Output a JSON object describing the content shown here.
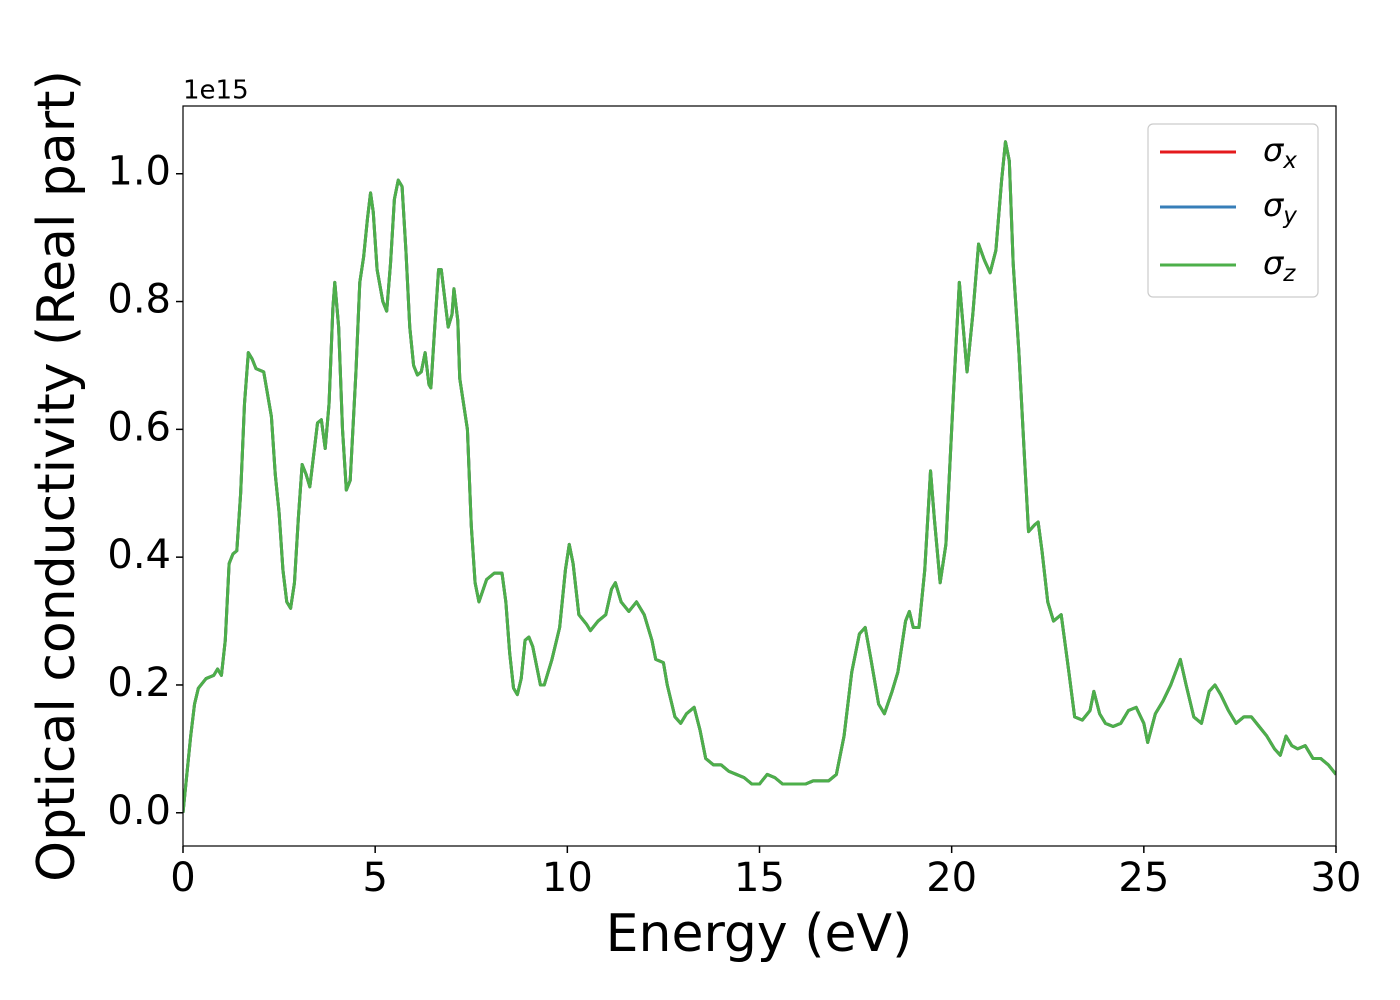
{
  "chart_data": {
    "type": "line",
    "xlabel": "Energy (eV)",
    "ylabel": "Optical conductivity (Real part)",
    "offset_text": "1e15",
    "xlim": [
      0,
      30
    ],
    "xticks": [
      0,
      5,
      10,
      15,
      20,
      25,
      30
    ],
    "ylim": [
      -0.052,
      1.106
    ],
    "yticks": [
      {
        "value": 0,
        "label": "0.0"
      },
      0.2,
      0.4,
      0.6,
      0.8,
      {
        "value": 1,
        "label": "1.0"
      }
    ],
    "legend": "upper right",
    "x": [
      0,
      0.1,
      0.2,
      0.3,
      0.4,
      0.6,
      0.8,
      0.9,
      1.0,
      1.1,
      1.2,
      1.3,
      1.4,
      1.5,
      1.6,
      1.7,
      1.8,
      1.9,
      2.1,
      2.3,
      2.4,
      2.5,
      2.6,
      2.7,
      2.8,
      2.9,
      3.0,
      3.1,
      3.2,
      3.3,
      3.4,
      3.5,
      3.6,
      3.7,
      3.8,
      3.9,
      3.95,
      4.05,
      4.15,
      4.25,
      4.35,
      4.5,
      4.6,
      4.7,
      4.8,
      4.88,
      4.95,
      5.05,
      5.2,
      5.3,
      5.4,
      5.5,
      5.6,
      5.7,
      5.8,
      5.9,
      6.0,
      6.1,
      6.2,
      6.3,
      6.4,
      6.45,
      6.55,
      6.65,
      6.72,
      6.8,
      6.9,
      7.0,
      7.05,
      7.15,
      7.2,
      7.4,
      7.5,
      7.6,
      7.7,
      7.9,
      8.1,
      8.3,
      8.4,
      8.5,
      8.6,
      8.7,
      8.8,
      8.9,
      9.0,
      9.1,
      9.2,
      9.3,
      9.4,
      9.6,
      9.8,
      9.95,
      10.05,
      10.15,
      10.3,
      10.5,
      10.6,
      10.8,
      11.0,
      11.15,
      11.25,
      11.4,
      11.6,
      11.8,
      12.0,
      12.2,
      12.3,
      12.5,
      12.6,
      12.8,
      12.95,
      13.1,
      13.3,
      13.45,
      13.6,
      13.8,
      14.0,
      14.2,
      14.4,
      14.6,
      14.8,
      15.0,
      15.2,
      15.4,
      15.6,
      15.8,
      16.0,
      16.2,
      16.4,
      16.6,
      16.8,
      17.0,
      17.2,
      17.4,
      17.6,
      17.75,
      17.9,
      18.1,
      18.25,
      18.45,
      18.6,
      18.8,
      18.9,
      19.0,
      19.15,
      19.3,
      19.45,
      19.55,
      19.7,
      19.85,
      20.05,
      20.2,
      20.3,
      20.4,
      20.55,
      20.7,
      20.85,
      21.0,
      21.15,
      21.3,
      21.4,
      21.5,
      21.6,
      21.75,
      21.9,
      22.0,
      22.15,
      22.25,
      22.35,
      22.5,
      22.65,
      22.85,
      23.05,
      23.2,
      23.4,
      23.6,
      23.7,
      23.85,
      24.0,
      24.2,
      24.4,
      24.6,
      24.8,
      25.0,
      25.1,
      25.3,
      25.5,
      25.7,
      25.95,
      26.1,
      26.3,
      26.5,
      26.7,
      26.85,
      27.0,
      27.2,
      27.4,
      27.6,
      27.8,
      28.0,
      28.2,
      28.4,
      28.55,
      28.7,
      28.85,
      29.0,
      29.2,
      29.4,
      29.6,
      29.8,
      30.0
    ],
    "series": [
      {
        "name": "σx",
        "color": "#e41a1c",
        "values": [
          0,
          0.06,
          0.12,
          0.17,
          0.195,
          0.21,
          0.215,
          0.225,
          0.215,
          0.27,
          0.39,
          0.405,
          0.41,
          0.5,
          0.64,
          0.72,
          0.71,
          0.695,
          0.69,
          0.62,
          0.53,
          0.47,
          0.38,
          0.33,
          0.32,
          0.36,
          0.46,
          0.545,
          0.53,
          0.51,
          0.56,
          0.61,
          0.615,
          0.57,
          0.64,
          0.79,
          0.83,
          0.76,
          0.6,
          0.505,
          0.52,
          0.69,
          0.83,
          0.87,
          0.93,
          0.97,
          0.94,
          0.85,
          0.8,
          0.785,
          0.86,
          0.96,
          0.99,
          0.98,
          0.88,
          0.76,
          0.7,
          0.685,
          0.69,
          0.72,
          0.67,
          0.665,
          0.76,
          0.85,
          0.85,
          0.81,
          0.76,
          0.78,
          0.82,
          0.77,
          0.68,
          0.6,
          0.45,
          0.36,
          0.33,
          0.365,
          0.375,
          0.375,
          0.33,
          0.25,
          0.195,
          0.185,
          0.21,
          0.27,
          0.275,
          0.26,
          0.23,
          0.2,
          0.2,
          0.24,
          0.29,
          0.38,
          0.42,
          0.39,
          0.31,
          0.295,
          0.285,
          0.3,
          0.31,
          0.35,
          0.36,
          0.33,
          0.315,
          0.33,
          0.31,
          0.27,
          0.24,
          0.235,
          0.2,
          0.15,
          0.14,
          0.155,
          0.165,
          0.13,
          0.085,
          0.075,
          0.075,
          0.065,
          0.06,
          0.055,
          0.045,
          0.045,
          0.06,
          0.055,
          0.045,
          0.045,
          0.045,
          0.045,
          0.05,
          0.05,
          0.05,
          0.06,
          0.12,
          0.22,
          0.28,
          0.29,
          0.24,
          0.17,
          0.155,
          0.19,
          0.22,
          0.3,
          0.315,
          0.29,
          0.29,
          0.38,
          0.535,
          0.46,
          0.36,
          0.42,
          0.66,
          0.83,
          0.76,
          0.69,
          0.78,
          0.89,
          0.865,
          0.845,
          0.88,
          0.99,
          1.05,
          1.02,
          0.86,
          0.72,
          0.55,
          0.44,
          0.45,
          0.455,
          0.41,
          0.33,
          0.3,
          0.31,
          0.22,
          0.15,
          0.145,
          0.16,
          0.19,
          0.155,
          0.14,
          0.135,
          0.14,
          0.16,
          0.165,
          0.14,
          0.11,
          0.155,
          0.175,
          0.2,
          0.24,
          0.2,
          0.15,
          0.14,
          0.19,
          0.2,
          0.185,
          0.16,
          0.14,
          0.15,
          0.15,
          0.135,
          0.12,
          0.1,
          0.09,
          0.12,
          0.105,
          0.1,
          0.105,
          0.085,
          0.085,
          0.075,
          0.06
        ]
      },
      {
        "name": "σy",
        "color": "#377eb8",
        "values": [
          0,
          0.06,
          0.12,
          0.17,
          0.195,
          0.21,
          0.215,
          0.225,
          0.215,
          0.27,
          0.39,
          0.405,
          0.41,
          0.5,
          0.64,
          0.72,
          0.71,
          0.695,
          0.69,
          0.62,
          0.53,
          0.47,
          0.38,
          0.33,
          0.32,
          0.36,
          0.46,
          0.545,
          0.53,
          0.51,
          0.56,
          0.61,
          0.615,
          0.57,
          0.64,
          0.79,
          0.83,
          0.76,
          0.6,
          0.505,
          0.52,
          0.69,
          0.83,
          0.87,
          0.93,
          0.97,
          0.94,
          0.85,
          0.8,
          0.785,
          0.86,
          0.96,
          0.99,
          0.98,
          0.88,
          0.76,
          0.7,
          0.685,
          0.69,
          0.72,
          0.67,
          0.665,
          0.76,
          0.85,
          0.85,
          0.81,
          0.76,
          0.78,
          0.82,
          0.77,
          0.68,
          0.6,
          0.45,
          0.36,
          0.33,
          0.365,
          0.375,
          0.375,
          0.33,
          0.25,
          0.195,
          0.185,
          0.21,
          0.27,
          0.275,
          0.26,
          0.23,
          0.2,
          0.2,
          0.24,
          0.29,
          0.38,
          0.42,
          0.39,
          0.31,
          0.295,
          0.285,
          0.3,
          0.31,
          0.35,
          0.36,
          0.33,
          0.315,
          0.33,
          0.31,
          0.27,
          0.24,
          0.235,
          0.2,
          0.15,
          0.14,
          0.155,
          0.165,
          0.13,
          0.085,
          0.075,
          0.075,
          0.065,
          0.06,
          0.055,
          0.045,
          0.045,
          0.06,
          0.055,
          0.045,
          0.045,
          0.045,
          0.045,
          0.05,
          0.05,
          0.05,
          0.06,
          0.12,
          0.22,
          0.28,
          0.29,
          0.24,
          0.17,
          0.155,
          0.19,
          0.22,
          0.3,
          0.315,
          0.29,
          0.29,
          0.38,
          0.535,
          0.46,
          0.36,
          0.42,
          0.66,
          0.83,
          0.76,
          0.69,
          0.78,
          0.89,
          0.865,
          0.845,
          0.88,
          0.99,
          1.05,
          1.02,
          0.86,
          0.72,
          0.55,
          0.44,
          0.45,
          0.455,
          0.41,
          0.33,
          0.3,
          0.31,
          0.22,
          0.15,
          0.145,
          0.16,
          0.19,
          0.155,
          0.14,
          0.135,
          0.14,
          0.16,
          0.165,
          0.14,
          0.11,
          0.155,
          0.175,
          0.2,
          0.24,
          0.2,
          0.15,
          0.14,
          0.19,
          0.2,
          0.185,
          0.16,
          0.14,
          0.15,
          0.15,
          0.135,
          0.12,
          0.1,
          0.09,
          0.12,
          0.105,
          0.1,
          0.105,
          0.085,
          0.085,
          0.075,
          0.06
        ]
      },
      {
        "name": "σz",
        "color": "#4daf4a",
        "values": [
          0,
          0.06,
          0.12,
          0.17,
          0.195,
          0.21,
          0.215,
          0.225,
          0.215,
          0.27,
          0.39,
          0.405,
          0.41,
          0.5,
          0.64,
          0.72,
          0.71,
          0.695,
          0.69,
          0.62,
          0.53,
          0.47,
          0.38,
          0.33,
          0.32,
          0.36,
          0.46,
          0.545,
          0.53,
          0.51,
          0.56,
          0.61,
          0.615,
          0.57,
          0.64,
          0.79,
          0.83,
          0.76,
          0.6,
          0.505,
          0.52,
          0.69,
          0.83,
          0.87,
          0.93,
          0.97,
          0.94,
          0.85,
          0.8,
          0.785,
          0.86,
          0.96,
          0.99,
          0.98,
          0.88,
          0.76,
          0.7,
          0.685,
          0.69,
          0.72,
          0.67,
          0.665,
          0.76,
          0.85,
          0.85,
          0.81,
          0.76,
          0.78,
          0.82,
          0.77,
          0.68,
          0.6,
          0.45,
          0.36,
          0.33,
          0.365,
          0.375,
          0.375,
          0.33,
          0.25,
          0.195,
          0.185,
          0.21,
          0.27,
          0.275,
          0.26,
          0.23,
          0.2,
          0.2,
          0.24,
          0.29,
          0.38,
          0.42,
          0.39,
          0.31,
          0.295,
          0.285,
          0.3,
          0.31,
          0.35,
          0.36,
          0.33,
          0.315,
          0.33,
          0.31,
          0.27,
          0.24,
          0.235,
          0.2,
          0.15,
          0.14,
          0.155,
          0.165,
          0.13,
          0.085,
          0.075,
          0.075,
          0.065,
          0.06,
          0.055,
          0.045,
          0.045,
          0.06,
          0.055,
          0.045,
          0.045,
          0.045,
          0.045,
          0.05,
          0.05,
          0.05,
          0.06,
          0.12,
          0.22,
          0.28,
          0.29,
          0.24,
          0.17,
          0.155,
          0.19,
          0.22,
          0.3,
          0.315,
          0.29,
          0.29,
          0.38,
          0.535,
          0.46,
          0.36,
          0.42,
          0.66,
          0.83,
          0.76,
          0.69,
          0.78,
          0.89,
          0.865,
          0.845,
          0.88,
          0.99,
          1.05,
          1.02,
          0.86,
          0.72,
          0.55,
          0.44,
          0.45,
          0.455,
          0.41,
          0.33,
          0.3,
          0.31,
          0.22,
          0.15,
          0.145,
          0.16,
          0.19,
          0.155,
          0.14,
          0.135,
          0.14,
          0.16,
          0.165,
          0.14,
          0.11,
          0.155,
          0.175,
          0.2,
          0.24,
          0.2,
          0.15,
          0.14,
          0.19,
          0.2,
          0.185,
          0.16,
          0.14,
          0.15,
          0.15,
          0.135,
          0.12,
          0.1,
          0.09,
          0.12,
          0.105,
          0.1,
          0.105,
          0.085,
          0.085,
          0.075,
          0.06
        ]
      }
    ]
  }
}
